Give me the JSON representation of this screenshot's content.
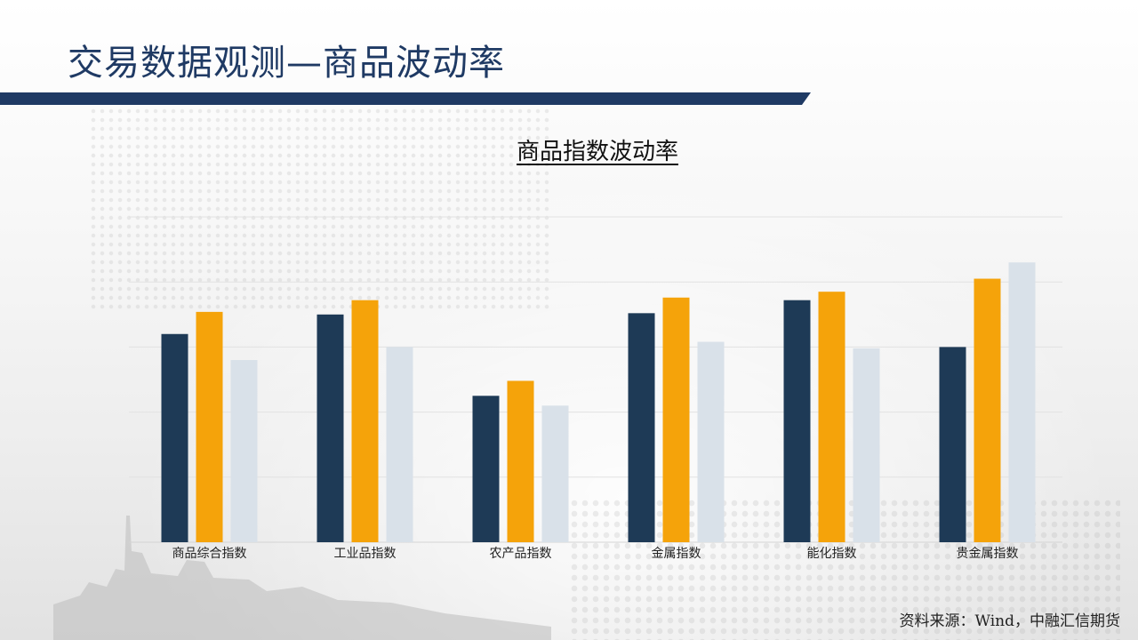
{
  "slide": {
    "title": "交易数据观测—商品波动率",
    "source": "资料来源：Wind，中融汇信期货"
  },
  "colors": {
    "title": "#1f3a64",
    "header_bar": "#1f3a64",
    "series": [
      "#1e3a56",
      "#f5a30a",
      "#d9e1e9"
    ]
  },
  "chart_data": {
    "type": "bar",
    "title": "商品指数波动率",
    "categories": [
      "商品综合指数",
      "工业品指数",
      "农产品指数",
      "金属指数",
      "能化指数",
      "贵金属指数"
    ],
    "series": [
      {
        "values": [
          3.2,
          3.5,
          2.25,
          3.52,
          3.72,
          3.0
        ]
      },
      {
        "values": [
          3.54,
          3.72,
          2.48,
          3.76,
          3.85,
          4.05
        ]
      },
      {
        "values": [
          2.8,
          3.0,
          2.1,
          3.08,
          2.98,
          4.3
        ]
      }
    ],
    "ylim": [
      0,
      5
    ],
    "gridlines": true,
    "y_ticks_shown": false,
    "legend": "none"
  }
}
